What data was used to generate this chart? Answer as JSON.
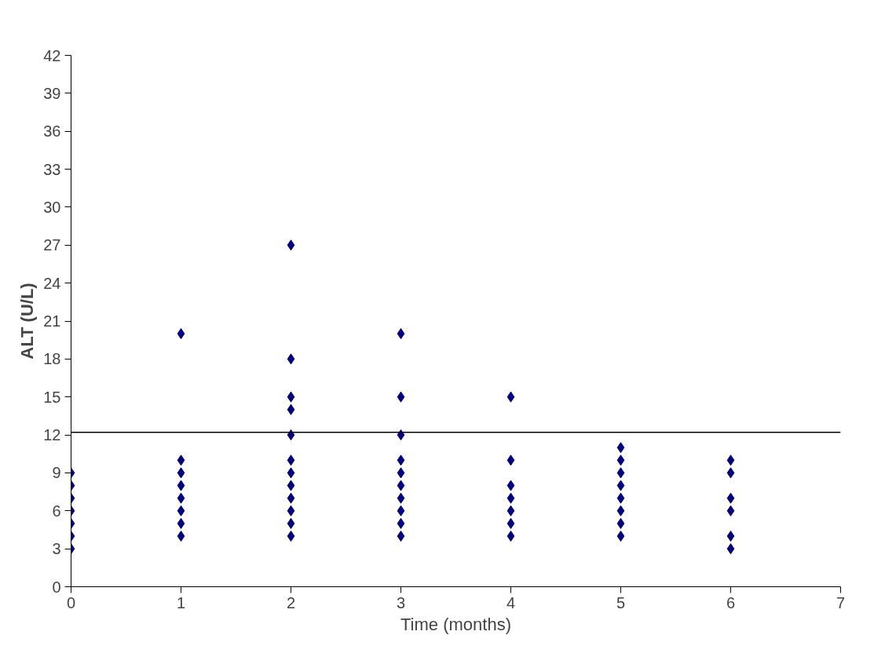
{
  "chart_data": {
    "type": "scatter",
    "xlabel": "Time (months)",
    "ylabel": "ALT (U/L)",
    "marker": "diamond",
    "grid": false,
    "xlim": [
      0,
      7
    ],
    "xticks": [
      0,
      1,
      2,
      3,
      4,
      5,
      6,
      7
    ],
    "ylim": [
      0,
      42
    ],
    "yticks": [
      0,
      3,
      6,
      9,
      12,
      15,
      18,
      21,
      24,
      27,
      30,
      33,
      36,
      39,
      42
    ],
    "series": [
      {
        "color": "#000080",
        "x": [
          0,
          0,
          0,
          0,
          0,
          0,
          0,
          1,
          1,
          1,
          1,
          1,
          1,
          1,
          1,
          2,
          2,
          2,
          2,
          2,
          2,
          2,
          2,
          2,
          2,
          2,
          2,
          3,
          3,
          3,
          3,
          3,
          3,
          3,
          3,
          3,
          3,
          4,
          4,
          4,
          4,
          4,
          4,
          4,
          5,
          5,
          5,
          5,
          5,
          5,
          5,
          5,
          6,
          6,
          6,
          6,
          6,
          6
        ],
        "values": [
          9,
          8,
          7,
          6,
          5,
          4,
          3,
          20,
          10,
          9,
          8,
          7,
          6,
          5,
          4,
          27,
          18,
          15,
          14,
          12,
          10,
          9,
          8,
          7,
          6,
          5,
          4,
          20,
          15,
          12,
          10,
          9,
          8,
          7,
          6,
          5,
          4,
          15,
          10,
          8,
          7,
          6,
          5,
          4,
          11,
          10,
          9,
          8,
          7,
          6,
          5,
          4,
          10,
          9,
          7,
          6,
          4,
          3
        ]
      }
    ],
    "ref_lines": [
      {
        "axis": "y",
        "value": 12.2,
        "color": "#000000",
        "line_style": "solid"
      }
    ]
  }
}
